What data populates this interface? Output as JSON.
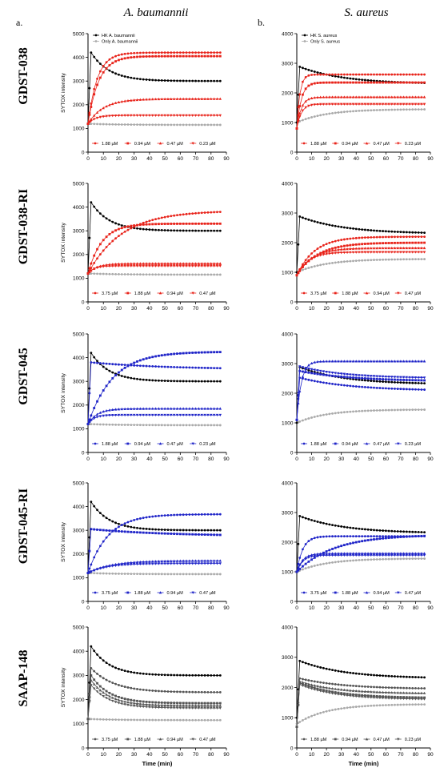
{
  "figure": {
    "column_titles": [
      "A. baumannii",
      "S. aureus"
    ],
    "panel_letters": [
      "a.",
      "b."
    ],
    "row_labels": [
      "GDST-038",
      "GDST-038-RI",
      "GDST-045",
      "GDST-045-RI",
      "SAAP-148"
    ]
  },
  "colors": {
    "hk": "#000000",
    "only": "#aaaaaa",
    "red": "#e8231a",
    "blue": "#1f24c8",
    "gray": "#555555"
  },
  "chart_data": [
    {
      "type": "line",
      "peptide": "GDST-038",
      "organism": "A. baumannii",
      "ylabel": "SYTOX intensity",
      "xlabel": "",
      "xlim": [
        0,
        90
      ],
      "ylim": [
        0,
        5000
      ],
      "xticks": [
        0,
        10,
        20,
        30,
        40,
        50,
        60,
        70,
        80,
        90
      ],
      "yticks": [
        0,
        1000,
        2000,
        3000,
        4000,
        5000
      ],
      "legend_top": [
        "HK A. baumannii",
        "Only A. baumannii"
      ],
      "series": [
        {
          "name": "HK A. baumannii",
          "color_key": "hk",
          "marker": "circle",
          "profile": "peakdecay",
          "start": 1200,
          "peak": 4200,
          "final": 3000,
          "tau": 12
        },
        {
          "name": "Only A. baumannii",
          "color_key": "only",
          "marker": "circle",
          "profile": "flat",
          "start": 1200,
          "final": 1150,
          "tau": 20
        },
        {
          "name": "1.88 µM",
          "color_key": "red",
          "marker": "circle",
          "profile": "rise",
          "start": 1200,
          "final": 4200,
          "tau": 6
        },
        {
          "name": "0.94 µM",
          "color_key": "red",
          "marker": "square",
          "profile": "rise",
          "start": 1200,
          "final": 4050,
          "tau": 7
        },
        {
          "name": "0.47 µM",
          "color_key": "red",
          "marker": "triangle",
          "profile": "rise",
          "start": 1200,
          "final": 2250,
          "tau": 10
        },
        {
          "name": "0.23 µM",
          "color_key": "red",
          "marker": "tridown",
          "profile": "rise",
          "start": 1200,
          "final": 1550,
          "tau": 5
        }
      ]
    },
    {
      "type": "line",
      "peptide": "GDST-038",
      "organism": "S. aureus",
      "ylabel": "",
      "xlabel": "",
      "xlim": [
        0,
        90
      ],
      "ylim": [
        0,
        4000
      ],
      "xticks": [
        0,
        10,
        20,
        30,
        40,
        50,
        60,
        70,
        80,
        90
      ],
      "yticks": [
        0,
        1000,
        2000,
        3000,
        4000
      ],
      "legend_top": [
        "HK S. aureus",
        "Only S. aureus"
      ],
      "series": [
        {
          "name": "HK S. aureus",
          "color_key": "hk",
          "marker": "circle",
          "profile": "peakdecay",
          "start": 1000,
          "peak": 2880,
          "final": 2300,
          "tau": 30
        },
        {
          "name": "Only S. aureus",
          "color_key": "only",
          "marker": "circle",
          "profile": "flat",
          "start": 1000,
          "final": 1450,
          "tau": 20
        },
        {
          "name": "1.88 µM",
          "color_key": "red",
          "marker": "circle",
          "profile": "rise",
          "start": 800,
          "final": 2620,
          "tau": 2
        },
        {
          "name": "0.94 µM",
          "color_key": "red",
          "marker": "square",
          "profile": "rise",
          "start": 800,
          "final": 2350,
          "tau": 3
        },
        {
          "name": "0.47 µM",
          "color_key": "red",
          "marker": "triangle",
          "profile": "rise",
          "start": 800,
          "final": 1860,
          "tau": 3
        },
        {
          "name": "0.23 µM",
          "color_key": "red",
          "marker": "tridown",
          "profile": "rise",
          "start": 800,
          "final": 1620,
          "tau": 3
        }
      ]
    },
    {
      "type": "line",
      "peptide": "GDST-038-RI",
      "organism": "A. baumannii",
      "ylabel": "SYTOX intensity",
      "xlabel": "",
      "xlim": [
        0,
        90
      ],
      "ylim": [
        0,
        5000
      ],
      "xticks": [
        0,
        10,
        20,
        30,
        40,
        50,
        60,
        70,
        80,
        90
      ],
      "yticks": [
        0,
        1000,
        2000,
        3000,
        4000,
        5000
      ],
      "legend_top": [],
      "series": [
        {
          "name": "HK A. baumannii",
          "color_key": "hk",
          "marker": "circle",
          "profile": "peakdecay",
          "start": 1200,
          "peak": 4200,
          "final": 3000,
          "tau": 12
        },
        {
          "name": "Only A. baumannii",
          "color_key": "only",
          "marker": "circle",
          "profile": "flat",
          "start": 1200,
          "final": 1150,
          "tau": 20
        },
        {
          "name": "3.75 µM",
          "color_key": "red",
          "marker": "circle",
          "profile": "rise",
          "start": 1200,
          "final": 3850,
          "tau": 22
        },
        {
          "name": "1.88 µM",
          "color_key": "red",
          "marker": "square",
          "profile": "rise",
          "start": 1200,
          "final": 3300,
          "tau": 9
        },
        {
          "name": "0.94 µM",
          "color_key": "red",
          "marker": "triangle",
          "profile": "rise",
          "start": 1200,
          "final": 1620,
          "tau": 6
        },
        {
          "name": "0.47 µM",
          "color_key": "red",
          "marker": "tridown",
          "profile": "rise",
          "start": 1200,
          "final": 1520,
          "tau": 4
        }
      ]
    },
    {
      "type": "line",
      "peptide": "GDST-038-RI",
      "organism": "S. aureus",
      "ylabel": "",
      "xlabel": "",
      "xlim": [
        0,
        90
      ],
      "ylim": [
        0,
        4000
      ],
      "xticks": [
        0,
        10,
        20,
        30,
        40,
        50,
        60,
        70,
        80,
        90
      ],
      "yticks": [
        0,
        1000,
        2000,
        3000,
        4000
      ],
      "legend_top": [],
      "series": [
        {
          "name": "HK S. aureus",
          "color_key": "hk",
          "marker": "circle",
          "profile": "peakdecay",
          "start": 1000,
          "peak": 2880,
          "final": 2300,
          "tau": 30
        },
        {
          "name": "Only S. aureus",
          "color_key": "only",
          "marker": "circle",
          "profile": "flat",
          "start": 1000,
          "final": 1450,
          "tau": 20
        },
        {
          "name": "3.75 µM",
          "color_key": "red",
          "marker": "circle",
          "profile": "rise",
          "start": 900,
          "final": 2200,
          "tau": 12
        },
        {
          "name": "1.88 µM",
          "color_key": "red",
          "marker": "square",
          "profile": "rise",
          "start": 900,
          "final": 2000,
          "tau": 14
        },
        {
          "name": "0.94 µM",
          "color_key": "red",
          "marker": "triangle",
          "profile": "rise",
          "start": 900,
          "final": 1820,
          "tau": 10
        },
        {
          "name": "0.47 µM",
          "color_key": "red",
          "marker": "tridown",
          "profile": "rise",
          "start": 900,
          "final": 1680,
          "tau": 8
        }
      ]
    },
    {
      "type": "line",
      "peptide": "GDST-045",
      "organism": "A. baumannii",
      "ylabel": "SYTOX intensity",
      "xlabel": "",
      "xlim": [
        0,
        90
      ],
      "ylim": [
        0,
        5000
      ],
      "xticks": [
        0,
        10,
        20,
        30,
        40,
        50,
        60,
        70,
        80,
        90
      ],
      "yticks": [
        0,
        1000,
        2000,
        3000,
        4000,
        5000
      ],
      "legend_top": [],
      "series": [
        {
          "name": "HK A. baumannii",
          "color_key": "hk",
          "marker": "circle",
          "profile": "peakdecay",
          "start": 1200,
          "peak": 4200,
          "final": 3000,
          "tau": 12
        },
        {
          "name": "Only A. baumannii",
          "color_key": "only",
          "marker": "circle",
          "profile": "flat",
          "start": 1200,
          "final": 1150,
          "tau": 20
        },
        {
          "name": "1.88 µM",
          "color_key": "blue",
          "marker": "circle",
          "profile": "peakdecay",
          "start": 1200,
          "peak": 3800,
          "final": 3500,
          "tau": 50
        },
        {
          "name": "0.94 µM",
          "color_key": "blue",
          "marker": "square",
          "profile": "rise",
          "start": 1200,
          "final": 4250,
          "tau": 16
        },
        {
          "name": "0.47 µM",
          "color_key": "blue",
          "marker": "triangle",
          "profile": "rise",
          "start": 1200,
          "final": 1850,
          "tau": 6
        },
        {
          "name": "0.23 µM",
          "color_key": "blue",
          "marker": "tridown",
          "profile": "rise",
          "start": 1200,
          "final": 1580,
          "tau": 4
        }
      ]
    },
    {
      "type": "line",
      "peptide": "GDST-045",
      "organism": "S. aureus",
      "ylabel": "",
      "xlabel": "",
      "xlim": [
        0,
        90
      ],
      "ylim": [
        0,
        4000
      ],
      "xticks": [
        0,
        10,
        20,
        30,
        40,
        50,
        60,
        70,
        80,
        90
      ],
      "yticks": [
        0,
        1000,
        2000,
        3000,
        4000
      ],
      "legend_top": [],
      "series": [
        {
          "name": "HK S. aureus",
          "color_key": "hk",
          "marker": "circle",
          "profile": "peakdecay",
          "start": 1000,
          "peak": 2880,
          "final": 2300,
          "tau": 30
        },
        {
          "name": "Only S. aureus",
          "color_key": "only",
          "marker": "circle",
          "profile": "flat",
          "start": 1000,
          "final": 1450,
          "tau": 20
        },
        {
          "name": "1.88 µM",
          "color_key": "blue",
          "marker": "circle",
          "profile": "peakdecay",
          "start": 1100,
          "peak": 2520,
          "final": 2080,
          "tau": 35
        },
        {
          "name": "0.94 µM",
          "color_key": "blue",
          "marker": "square",
          "profile": "peakdecay",
          "start": 1100,
          "peak": 2750,
          "final": 2400,
          "tau": 35
        },
        {
          "name": "0.47 µM",
          "color_key": "blue",
          "marker": "triangle",
          "profile": "rise",
          "start": 1100,
          "final": 3080,
          "tau": 3
        },
        {
          "name": "0.23 µM",
          "color_key": "blue",
          "marker": "tridown",
          "profile": "peakdecay",
          "start": 1100,
          "peak": 2900,
          "final": 2500,
          "tau": 30
        }
      ]
    },
    {
      "type": "line",
      "peptide": "GDST-045-RI",
      "organism": "A. baumannii",
      "ylabel": "SYTOX intensity",
      "xlabel": "",
      "xlim": [
        0,
        90
      ],
      "ylim": [
        0,
        5000
      ],
      "xticks": [
        0,
        10,
        20,
        30,
        40,
        50,
        60,
        70,
        80,
        90
      ],
      "yticks": [
        0,
        1000,
        2000,
        3000,
        4000,
        5000
      ],
      "legend_top": [],
      "series": [
        {
          "name": "HK A. baumannii",
          "color_key": "hk",
          "marker": "circle",
          "profile": "peakdecay",
          "start": 1200,
          "peak": 4200,
          "final": 3000,
          "tau": 12
        },
        {
          "name": "Only A. baumannii",
          "color_key": "only",
          "marker": "circle",
          "profile": "flat",
          "start": 1200,
          "final": 1150,
          "tau": 20
        },
        {
          "name": "3.75 µM",
          "color_key": "blue",
          "marker": "circle",
          "profile": "rise",
          "start": 1200,
          "final": 3680,
          "tau": 13
        },
        {
          "name": "1.88 µM",
          "color_key": "blue",
          "marker": "square",
          "profile": "peakdecay",
          "start": 1200,
          "peak": 3050,
          "final": 2750,
          "tau": 50
        },
        {
          "name": "0.94 µM",
          "color_key": "blue",
          "marker": "triangle",
          "profile": "rise",
          "start": 1200,
          "final": 1720,
          "tau": 15
        },
        {
          "name": "0.47 µM",
          "color_key": "blue",
          "marker": "tridown",
          "profile": "rise",
          "start": 1200,
          "final": 1600,
          "tau": 12
        }
      ]
    },
    {
      "type": "line",
      "peptide": "GDST-045-RI",
      "organism": "S. aureus",
      "ylabel": "",
      "xlabel": "",
      "xlim": [
        0,
        90
      ],
      "ylim": [
        0,
        4000
      ],
      "xticks": [
        0,
        10,
        20,
        30,
        40,
        50,
        60,
        70,
        80,
        90
      ],
      "yticks": [
        0,
        1000,
        2000,
        3000,
        4000
      ],
      "legend_top": [],
      "series": [
        {
          "name": "HK S. aureus",
          "color_key": "hk",
          "marker": "circle",
          "profile": "peakdecay",
          "start": 1000,
          "peak": 2880,
          "final": 2300,
          "tau": 30
        },
        {
          "name": "Only S. aureus",
          "color_key": "only",
          "marker": "circle",
          "profile": "flat",
          "start": 1000,
          "final": 1450,
          "tau": 20
        },
        {
          "name": "3.75 µM",
          "color_key": "blue",
          "marker": "circle",
          "profile": "rise",
          "start": 1000,
          "final": 2200,
          "tau": 4
        },
        {
          "name": "1.88 µM",
          "color_key": "blue",
          "marker": "square",
          "profile": "rise",
          "start": 1000,
          "final": 2250,
          "tau": 25
        },
        {
          "name": "0.94 µM",
          "color_key": "blue",
          "marker": "triangle",
          "profile": "rise",
          "start": 1000,
          "final": 1620,
          "tau": 4
        },
        {
          "name": "0.47 µM",
          "color_key": "blue",
          "marker": "tridown",
          "profile": "rise",
          "start": 1000,
          "final": 1560,
          "tau": 4
        }
      ]
    },
    {
      "type": "line",
      "peptide": "SAAP-148",
      "organism": "A. baumannii",
      "ylabel": "SYTOX intensity",
      "xlabel": "Time (min)",
      "xlim": [
        0,
        90
      ],
      "ylim": [
        0,
        5000
      ],
      "xticks": [
        0,
        10,
        20,
        30,
        40,
        50,
        60,
        70,
        80,
        90
      ],
      "yticks": [
        0,
        1000,
        2000,
        3000,
        4000,
        5000
      ],
      "legend_top": [],
      "series": [
        {
          "name": "HK A. baumannii",
          "color_key": "hk",
          "marker": "circle",
          "profile": "peakdecay",
          "start": 1200,
          "peak": 4200,
          "final": 3000,
          "tau": 12
        },
        {
          "name": "Only A. baumannii",
          "color_key": "only",
          "marker": "circle",
          "profile": "flat",
          "start": 1200,
          "final": 1150,
          "tau": 20
        },
        {
          "name": "3.75 µM",
          "color_key": "gray",
          "marker": "circle",
          "profile": "peakdecay",
          "start": 1200,
          "peak": 3300,
          "final": 2300,
          "tau": 15
        },
        {
          "name": "1.88 µM",
          "color_key": "gray",
          "marker": "square",
          "profile": "peakdecay",
          "start": 1200,
          "peak": 3000,
          "final": 1850,
          "tau": 12
        },
        {
          "name": "0.94 µM",
          "color_key": "gray",
          "marker": "triangle",
          "profile": "peakdecay",
          "start": 1200,
          "peak": 2800,
          "final": 1750,
          "tau": 12
        },
        {
          "name": "0.47 µM",
          "color_key": "gray",
          "marker": "tridown",
          "profile": "peakdecay",
          "start": 1200,
          "peak": 2600,
          "final": 1650,
          "tau": 12
        }
      ]
    },
    {
      "type": "line",
      "peptide": "SAAP-148",
      "organism": "S. aureus",
      "ylabel": "",
      "xlabel": "Time (min)",
      "xlim": [
        0,
        90
      ],
      "ylim": [
        0,
        4000
      ],
      "xticks": [
        0,
        10,
        20,
        30,
        40,
        50,
        60,
        70,
        80,
        90
      ],
      "yticks": [
        0,
        1000,
        2000,
        3000,
        4000
      ],
      "legend_top": [],
      "series": [
        {
          "name": "HK S. aureus",
          "color_key": "hk",
          "marker": "circle",
          "profile": "peakdecay",
          "start": 1000,
          "peak": 2880,
          "final": 2300,
          "tau": 30
        },
        {
          "name": "Only S. aureus",
          "color_key": "only",
          "marker": "circle",
          "profile": "flat",
          "start": 800,
          "final": 1450,
          "tau": 20
        },
        {
          "name": "1.88 µM",
          "color_key": "gray",
          "marker": "circle",
          "profile": "peakdecay",
          "start": 700,
          "peak": 2300,
          "final": 1950,
          "tau": 30
        },
        {
          "name": "0.94 µM",
          "color_key": "gray",
          "marker": "square",
          "profile": "peakdecay",
          "start": 700,
          "peak": 2150,
          "final": 1650,
          "tau": 25
        },
        {
          "name": "0.47 µM",
          "color_key": "gray",
          "marker": "triangle",
          "profile": "peakdecay",
          "start": 700,
          "peak": 2200,
          "final": 1800,
          "tau": 25
        },
        {
          "name": "0.23 µM",
          "color_key": "gray",
          "marker": "tridown",
          "profile": "peakdecay",
          "start": 700,
          "peak": 2100,
          "final": 1600,
          "tau": 25
        }
      ]
    }
  ]
}
